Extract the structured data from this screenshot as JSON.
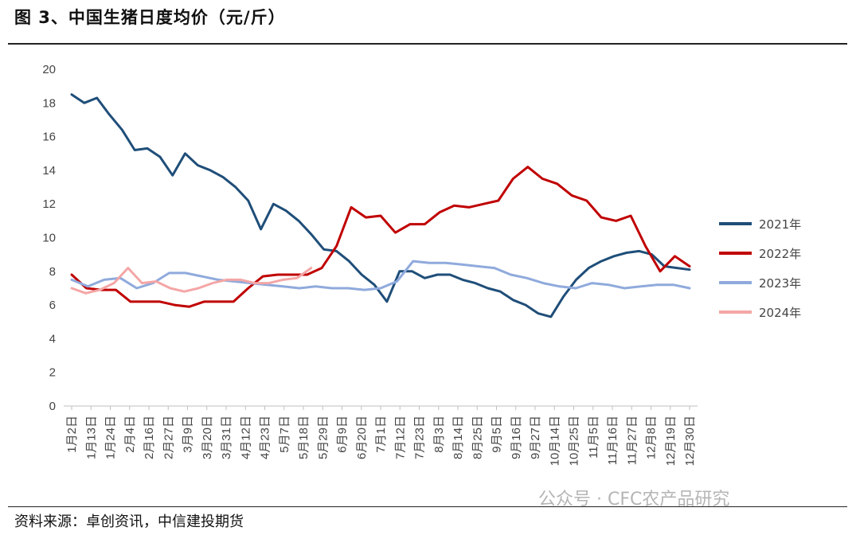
{
  "header": {
    "title": "图 3、中国生猪日度均价（元/斤）"
  },
  "footer": {
    "source": "资料来源：卓创资讯，中信建投期货"
  },
  "watermark": {
    "text": "公众号 · CFC农产品研究"
  },
  "chart_data": {
    "type": "line",
    "title": "中国生猪日度均价（元/斤）",
    "xlabel": "",
    "ylabel": "",
    "ylim": [
      0,
      20
    ],
    "yticks": [
      0,
      2,
      4,
      6,
      8,
      10,
      12,
      14,
      16,
      18,
      20
    ],
    "x_tick_labels": [
      "1月2日",
      "1月13日",
      "1月24日",
      "2月4日",
      "2月16日",
      "2月27日",
      "3月9日",
      "3月20日",
      "3月31日",
      "4月12日",
      "4月23日",
      "5月7日",
      "5月18日",
      "5月29日",
      "6月9日",
      "6月20日",
      "7月1日",
      "7月12日",
      "7月23日",
      "8月3日",
      "8月14日",
      "8月25日",
      "9月5日",
      "9月16日",
      "9月27日",
      "10月14日",
      "10月25日",
      "11月5日",
      "11月16日",
      "11月27日",
      "12月8日",
      "12月19日",
      "12月30日"
    ],
    "grid": false,
    "legend_position": "right",
    "series": [
      {
        "name": "2021年",
        "color": "#1f4e79",
        "x_start": 0,
        "x_end": 32,
        "values": [
          18.5,
          18.0,
          18.3,
          17.3,
          16.4,
          15.2,
          15.3,
          14.8,
          13.7,
          15.0,
          14.3,
          14.0,
          13.6,
          13.0,
          12.2,
          10.5,
          12.0,
          11.6,
          11.0,
          10.2,
          9.3,
          9.2,
          8.6,
          7.8,
          7.2,
          6.2,
          8.0,
          8.0,
          7.6,
          7.8,
          7.8,
          7.5,
          7.3,
          7.0,
          6.8,
          6.3,
          6.0,
          5.5,
          5.3,
          6.5,
          7.5,
          8.2,
          8.6,
          8.9,
          9.1,
          9.2,
          9.0,
          8.3,
          8.2,
          8.1
        ]
      },
      {
        "name": "2022年",
        "color": "#c00000",
        "x_start": 0,
        "x_end": 32,
        "values": [
          7.8,
          7.0,
          6.9,
          6.9,
          6.2,
          6.2,
          6.2,
          6.0,
          5.9,
          6.2,
          6.2,
          6.2,
          7.0,
          7.7,
          7.8,
          7.8,
          7.8,
          8.2,
          9.5,
          11.8,
          11.2,
          11.3,
          10.3,
          10.8,
          10.8,
          11.5,
          11.9,
          11.8,
          12.0,
          12.2,
          13.5,
          14.2,
          13.5,
          13.2,
          12.5,
          12.2,
          11.2,
          11.0,
          11.3,
          9.5,
          8.0,
          8.9,
          8.3
        ]
      },
      {
        "name": "2023年",
        "color": "#8faadc",
        "x_start": 0,
        "x_end": 32,
        "values": [
          7.5,
          7.1,
          7.5,
          7.6,
          7.0,
          7.3,
          7.9,
          7.9,
          7.7,
          7.5,
          7.4,
          7.3,
          7.2,
          7.1,
          7.0,
          7.1,
          7.0,
          7.0,
          6.9,
          7.0,
          7.4,
          8.6,
          8.5,
          8.5,
          8.4,
          8.3,
          8.2,
          7.8,
          7.6,
          7.3,
          7.1,
          7.0,
          7.3,
          7.2,
          7.0,
          7.1,
          7.2,
          7.2,
          7.0
        ]
      },
      {
        "name": "2024年",
        "color": "#f4a6a6",
        "x_start": 0,
        "x_end": 12.4,
        "values": [
          7.0,
          6.7,
          6.9,
          7.3,
          8.2,
          7.3,
          7.4,
          7.0,
          6.8,
          7.0,
          7.3,
          7.5,
          7.5,
          7.3,
          7.3,
          7.5,
          7.6,
          8.2
        ]
      }
    ]
  }
}
